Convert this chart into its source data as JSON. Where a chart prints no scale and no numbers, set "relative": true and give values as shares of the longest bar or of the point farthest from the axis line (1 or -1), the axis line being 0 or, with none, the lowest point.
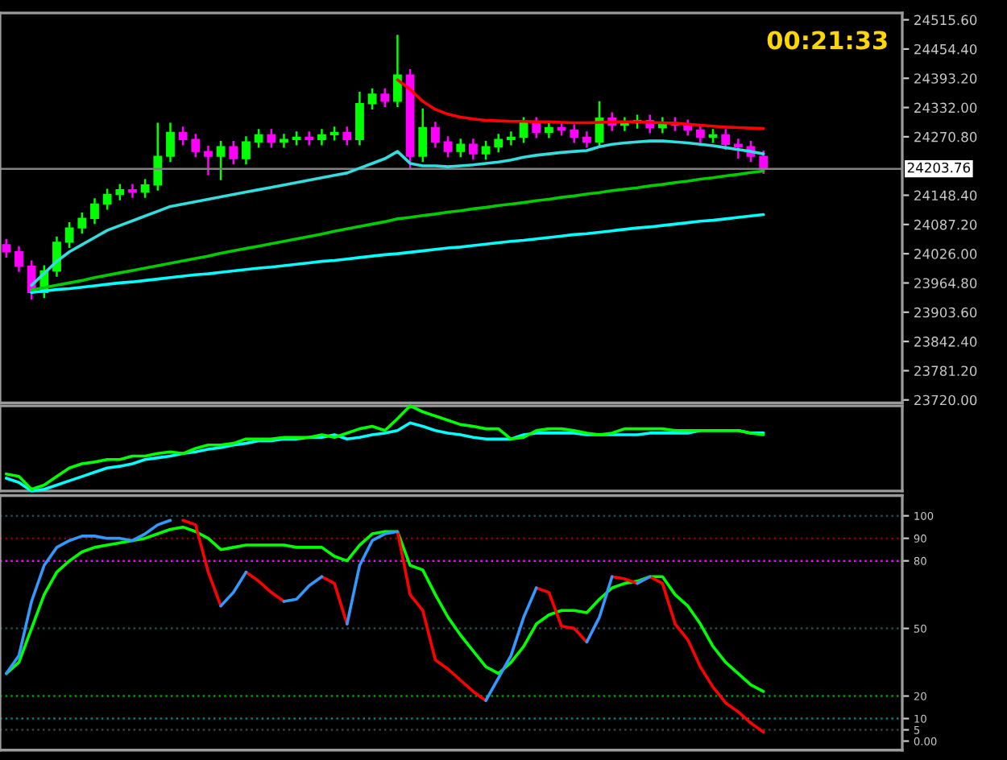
{
  "chart_data": [
    {
      "type": "candlestick",
      "categories": [
        null,
        null,
        null,
        null,
        null,
        null,
        null,
        null,
        null,
        null,
        null,
        null,
        null,
        null,
        null,
        null,
        null,
        null,
        null,
        null,
        null,
        null,
        null,
        null,
        null,
        null,
        null,
        null,
        null,
        null,
        null,
        null,
        null,
        null,
        null,
        null,
        null,
        null,
        null,
        null,
        null,
        null,
        null,
        null,
        null,
        null,
        null,
        null,
        null,
        null,
        null,
        null,
        null,
        null,
        null,
        null,
        null,
        null,
        null,
        null,
        null
      ],
      "ohlc": [
        [
          24045,
          24057,
          24018,
          24030
        ],
        [
          24030,
          24042,
          23988,
          24000
        ],
        [
          24000,
          24012,
          23930,
          23945
        ],
        [
          23945,
          24002,
          23933,
          23990
        ],
        [
          23990,
          24062,
          23978,
          24050
        ],
        [
          24050,
          24092,
          24038,
          24080
        ],
        [
          24080,
          24112,
          24068,
          24100
        ],
        [
          24100,
          24142,
          24088,
          24130
        ],
        [
          24130,
          24162,
          24118,
          24150
        ],
        [
          24150,
          24172,
          24138,
          24160
        ],
        [
          24160,
          24172,
          24143,
          24155
        ],
        [
          24155,
          24182,
          24143,
          24170
        ],
        [
          24170,
          24300,
          24158,
          24230
        ],
        [
          24230,
          24300,
          24218,
          24280
        ],
        [
          24280,
          24292,
          24253,
          24265
        ],
        [
          24265,
          24277,
          24228,
          24240
        ],
        [
          24240,
          24252,
          24190,
          24230
        ],
        [
          24230,
          24262,
          24180,
          24250
        ],
        [
          24250,
          24262,
          24213,
          24225
        ],
        [
          24225,
          24272,
          24213,
          24260
        ],
        [
          24260,
          24287,
          24248,
          24275
        ],
        [
          24275,
          24287,
          24248,
          24260
        ],
        [
          24260,
          24277,
          24248,
          24265
        ],
        [
          24265,
          24282,
          24253,
          24270
        ],
        [
          24270,
          24282,
          24253,
          24265
        ],
        [
          24265,
          24287,
          24253,
          24275
        ],
        [
          24275,
          24292,
          24263,
          24280
        ],
        [
          24280,
          24292,
          24253,
          24265
        ],
        [
          24265,
          24365,
          24253,
          24340
        ],
        [
          24340,
          24372,
          24328,
          24360
        ],
        [
          24360,
          24372,
          24333,
          24345
        ],
        [
          24345,
          24484,
          24333,
          24400
        ],
        [
          24400,
          24412,
          24205,
          24230
        ],
        [
          24230,
          24330,
          24218,
          24290
        ],
        [
          24290,
          24302,
          24248,
          24260
        ],
        [
          24260,
          24272,
          24228,
          24240
        ],
        [
          24240,
          24267,
          24228,
          24255
        ],
        [
          24255,
          24267,
          24223,
          24235
        ],
        [
          24235,
          24262,
          24223,
          24250
        ],
        [
          24250,
          24277,
          24238,
          24265
        ],
        [
          24265,
          24282,
          24253,
          24270
        ],
        [
          24270,
          24312,
          24258,
          24300
        ],
        [
          24300,
          24312,
          24268,
          24280
        ],
        [
          24280,
          24302,
          24268,
          24290
        ],
        [
          24290,
          24302,
          24273,
          24285
        ],
        [
          24285,
          24297,
          24258,
          24270
        ],
        [
          24270,
          24282,
          24248,
          24260
        ],
        [
          24260,
          24345,
          24248,
          24310
        ],
        [
          24310,
          24322,
          24283,
          24295
        ],
        [
          24295,
          24312,
          24283,
          24300
        ],
        [
          24300,
          24317,
          24288,
          24305
        ],
        [
          24305,
          24317,
          24278,
          24290
        ],
        [
          24290,
          24312,
          24278,
          24300
        ],
        [
          24300,
          24312,
          24283,
          24295
        ],
        [
          24295,
          24307,
          24273,
          24285
        ],
        [
          24285,
          24297,
          24258,
          24270
        ],
        [
          24270,
          24287,
          24258,
          24275
        ],
        [
          24275,
          24287,
          24243,
          24255
        ],
        [
          24255,
          24267,
          24225,
          24250
        ],
        [
          24250,
          24262,
          24218,
          24230
        ],
        [
          24230,
          24242,
          24193,
          24205
        ]
      ],
      "colors": [
        "#ff00ff",
        "#ff00ff",
        "#ff00ff",
        "#00ff00",
        "#00ff00",
        "#00ff00",
        "#00ff00",
        "#00ff00",
        "#00ff00",
        "#00ff00",
        "#ff00ff",
        "#00ff00",
        "#00ff00",
        "#00ff00",
        "#ff00ff",
        "#ff00ff",
        "#ff00ff",
        "#00ff00",
        "#ff00ff",
        "#00ff00",
        "#00ff00",
        "#ff00ff",
        "#00ff00",
        "#00ff00",
        "#ff00ff",
        "#00ff00",
        "#00ff00",
        "#ff00ff",
        "#00ff00",
        "#00ff00",
        "#ff00ff",
        "#00ff00",
        "#ff00ff",
        "#00ff00",
        "#ff00ff",
        "#ff00ff",
        "#00ff00",
        "#ff00ff",
        "#00ff00",
        "#00ff00",
        "#00ff00",
        "#00ff00",
        "#ff00ff",
        "#00ff00",
        "#ff00ff",
        "#ff00ff",
        "#ff00ff",
        "#00ff00",
        "#ff00ff",
        "#00ff00",
        "#00ff00",
        "#ff00ff",
        "#00ff00",
        "#ff00ff",
        "#ff00ff",
        "#ff00ff",
        "#00ff00",
        "#ff00ff",
        "#ff00ff",
        "#ff00ff",
        "#ff00ff"
      ],
      "series": [
        {
          "type": "line",
          "color": "#00ffff",
          "values": [
            null,
            null,
            23945,
            23948,
            23951,
            23953,
            23956,
            23959,
            23962,
            23965,
            23967,
            23970,
            23973,
            23976,
            23979,
            23982,
            23984,
            23987,
            23990,
            23993,
            23996,
            23998,
            24001,
            24004,
            24007,
            24010,
            24012,
            24015,
            24018,
            24021,
            24024,
            24026,
            24029,
            24032,
            24035,
            24038,
            24040,
            24043,
            24046,
            24049,
            24052,
            24054,
            24057,
            24060,
            24063,
            24066,
            24068,
            24071,
            24074,
            24077,
            24080,
            24082,
            24085,
            24088,
            24091,
            24094,
            24096,
            24099,
            24102,
            24105,
            24108
          ]
        },
        {
          "type": "line",
          "color": "#00cc00",
          "values": [
            null,
            null,
            23950,
            23955,
            23960,
            23965,
            23970,
            23976,
            23981,
            23986,
            23991,
            23996,
            24001,
            24006,
            24011,
            24016,
            24021,
            24027,
            24032,
            24037,
            24042,
            24047,
            24052,
            24057,
            24062,
            24067,
            24073,
            24078,
            24083,
            24088,
            24093,
            24099,
            24102,
            24106,
            24109,
            24113,
            24116,
            24120,
            24123,
            24127,
            24130,
            24133,
            24137,
            24140,
            24144,
            24147,
            24151,
            24154,
            24158,
            24161,
            24164,
            24168,
            24171,
            24175,
            24178,
            24182,
            24185,
            24189,
            24192,
            24196,
            24199
          ]
        },
        {
          "type": "line",
          "color": "#33dddd",
          "values": [
            null,
            null,
            23960,
            23985,
            24010,
            24030,
            24045,
            24060,
            24075,
            24085,
            24095,
            24105,
            24115,
            24125,
            24130,
            24135,
            24140,
            24145,
            24150,
            24155,
            24160,
            24165,
            24170,
            24175,
            24180,
            24185,
            24190,
            24195,
            24205,
            24215,
            24225,
            24240,
            24215,
            24210,
            24210,
            24208,
            24210,
            24212,
            24215,
            24218,
            24222,
            24228,
            24232,
            24235,
            24238,
            24240,
            24242,
            24250,
            24255,
            24258,
            24260,
            24262,
            24262,
            24260,
            24258,
            24255,
            24252,
            24248,
            24244,
            24240,
            24235
          ]
        },
        {
          "type": "line",
          "color": "#ff0000",
          "values": [
            null,
            null,
            null,
            null,
            null,
            null,
            null,
            null,
            null,
            null,
            null,
            null,
            null,
            null,
            null,
            null,
            null,
            null,
            null,
            null,
            null,
            null,
            null,
            null,
            null,
            null,
            null,
            null,
            null,
            null,
            null,
            24390,
            24370,
            24345,
            24328,
            24318,
            24312,
            24308,
            24305,
            24304,
            24303,
            24303,
            24302,
            24302,
            24301,
            24300,
            24300,
            24301,
            24302,
            24302,
            24302,
            24301,
            24300,
            24299,
            24297,
            24295,
            24293,
            24291,
            24290,
            24289,
            24288
          ]
        }
      ],
      "ylim": [
        23714,
        24530
      ],
      "yticks": [
        {
          "value": 24515.6,
          "label": "24515.60"
        },
        {
          "value": 24454.4,
          "label": "24454.40"
        },
        {
          "value": 24393.2,
          "label": "24393.20"
        },
        {
          "value": 24332.0,
          "label": "24332.00"
        },
        {
          "value": 24270.8,
          "label": "24270.80"
        },
        {
          "value": 24148.4,
          "label": "24148.40"
        },
        {
          "value": 24087.2,
          "label": "24087.20"
        },
        {
          "value": 24026.0,
          "label": "24026.00"
        },
        {
          "value": 23964.8,
          "label": "23964.80"
        },
        {
          "value": 23903.6,
          "label": "23903.60"
        },
        {
          "value": 23842.4,
          "label": "23842.40"
        },
        {
          "value": 23781.2,
          "label": "23781.20"
        },
        {
          "value": 23720.0,
          "label": "23720.00"
        }
      ],
      "ref_lines": [
        {
          "axis": "y",
          "value": 24203.76,
          "label": "24203.76",
          "color": "#808080"
        }
      ],
      "annotations": [
        "00:21:33"
      ],
      "tick_labels": "y"
    },
    {
      "type": "line",
      "relative": true,
      "categories": [
        null,
        null,
        null,
        null,
        null,
        null,
        null,
        null,
        null,
        null,
        null,
        null,
        null,
        null,
        null,
        null,
        null,
        null,
        null,
        null,
        null,
        null,
        null,
        null,
        null,
        null,
        null,
        null,
        null,
        null,
        null,
        null,
        null,
        null,
        null,
        null,
        null,
        null,
        null,
        null,
        null,
        null,
        null,
        null,
        null,
        null,
        null,
        null,
        null,
        null,
        null,
        null,
        null,
        null,
        null,
        null,
        null,
        null,
        null,
        null,
        null
      ],
      "series": [
        {
          "color": "#00ffff",
          "values": [
            0.15,
            0.1,
            0,
            0.02,
            0.07,
            0.12,
            0.17,
            0.22,
            0.27,
            0.29,
            0.32,
            0.37,
            0.39,
            0.41,
            0.44,
            0.46,
            0.49,
            0.51,
            0.54,
            0.56,
            0.59,
            0.59,
            0.61,
            0.61,
            0.63,
            0.63,
            0.66,
            0.61,
            0.63,
            0.66,
            0.68,
            0.71,
            0.8,
            0.76,
            0.71,
            0.68,
            0.66,
            0.63,
            0.61,
            0.61,
            0.61,
            0.66,
            0.68,
            0.68,
            0.68,
            0.68,
            0.66,
            0.66,
            0.66,
            0.66,
            0.66,
            0.68,
            0.68,
            0.68,
            0.68,
            0.71,
            0.71,
            0.71,
            0.71,
            0.68,
            0.68
          ]
        },
        {
          "color": "#00ff00",
          "values": [
            0.2,
            0.17,
            0.02,
            0.07,
            0.17,
            0.27,
            0.32,
            0.34,
            0.37,
            0.37,
            0.41,
            0.41,
            0.44,
            0.46,
            0.44,
            0.5,
            0.54,
            0.54,
            0.56,
            0.61,
            0.61,
            0.61,
            0.63,
            0.63,
            0.63,
            0.66,
            0.63,
            0.68,
            0.73,
            0.76,
            0.71,
            0.85,
            1,
            0.93,
            0.88,
            0.83,
            0.78,
            0.76,
            0.73,
            0.73,
            0.61,
            0.63,
            0.71,
            0.73,
            0.73,
            0.71,
            0.68,
            0.66,
            0.68,
            0.73,
            0.73,
            0.73,
            0.73,
            0.71,
            0.71,
            0.71,
            0.71,
            0.71,
            0.71,
            0.68,
            0.66
          ]
        }
      ]
    },
    {
      "type": "line",
      "categories": [
        null,
        null,
        null,
        null,
        null,
        null,
        null,
        null,
        null,
        null,
        null,
        null,
        null,
        null,
        null,
        null,
        null,
        null,
        null,
        null,
        null,
        null,
        null,
        null,
        null,
        null,
        null,
        null,
        null,
        null,
        null,
        null,
        null,
        null,
        null,
        null,
        null,
        null,
        null,
        null,
        null,
        null,
        null,
        null,
        null,
        null,
        null,
        null,
        null,
        null,
        null,
        null,
        null,
        null,
        null,
        null,
        null,
        null,
        null,
        null,
        null
      ],
      "series": [
        {
          "color": "#00ff00",
          "values": [
            30,
            35,
            50,
            65,
            75,
            80,
            84,
            86,
            87,
            88,
            89,
            90,
            92,
            94,
            95,
            93,
            90,
            85,
            86,
            87,
            87,
            87,
            87,
            86,
            86,
            86,
            82,
            80,
            87,
            92,
            93,
            93,
            78,
            76,
            65,
            55,
            47,
            40,
            33,
            30,
            35,
            42,
            52,
            56,
            58,
            58,
            57,
            63,
            68,
            70,
            71,
            73,
            73,
            65,
            60,
            52,
            42,
            35,
            30,
            25,
            22
          ]
        },
        {
          "color": "#3399ff",
          "values": [
            30,
            38,
            62,
            78,
            86,
            89,
            91,
            91,
            90,
            90,
            89,
            92,
            96,
            98,
            null,
            null,
            null,
            60,
            66,
            75,
            null,
            null,
            62,
            63,
            69,
            73,
            null,
            52,
            78,
            89,
            92,
            93,
            null,
            null,
            null,
            null,
            null,
            null,
            18,
            28,
            38,
            55,
            68,
            null,
            null,
            null,
            44,
            55,
            73,
            null,
            70,
            73,
            null,
            null,
            null,
            null,
            null,
            null,
            null,
            null,
            null
          ]
        },
        {
          "color": "#ff0000",
          "values": [
            null,
            null,
            null,
            null,
            null,
            null,
            null,
            null,
            null,
            null,
            null,
            null,
            null,
            null,
            98,
            96,
            75,
            60,
            null,
            75,
            71,
            66,
            62,
            null,
            null,
            73,
            70,
            52,
            null,
            null,
            null,
            93,
            65,
            58,
            36,
            32,
            27,
            22,
            18,
            null,
            null,
            null,
            68,
            66,
            51,
            50,
            44,
            null,
            73,
            72,
            70,
            73,
            70,
            52,
            45,
            33,
            24,
            17,
            13,
            8,
            4
          ]
        }
      ],
      "ylim": [
        -4,
        109
      ],
      "yticks": [
        100,
        90,
        80,
        50,
        20,
        10,
        5,
        {
          "value": 0,
          "label": "0.00"
        }
      ],
      "ref_lines": [
        {
          "axis": "y",
          "value": 100,
          "color": "#1f4f4f",
          "line_style": "dotted"
        },
        {
          "axis": "y",
          "value": 90,
          "color": "#8b0000",
          "line_style": "dotted"
        },
        {
          "axis": "y",
          "value": 80,
          "color": "#ff00ff",
          "line_style": "dotted"
        },
        {
          "axis": "y",
          "value": 50,
          "color": "#1f4f4f",
          "line_style": "dotted"
        },
        {
          "axis": "y",
          "value": 20,
          "color": "#00a000",
          "line_style": "dotted"
        },
        {
          "axis": "y",
          "value": 10,
          "color": "#008080",
          "line_style": "dotted"
        },
        {
          "axis": "y",
          "value": 5,
          "color": "#404040",
          "line_style": "dotted"
        }
      ],
      "tick_labels": "y"
    }
  ]
}
